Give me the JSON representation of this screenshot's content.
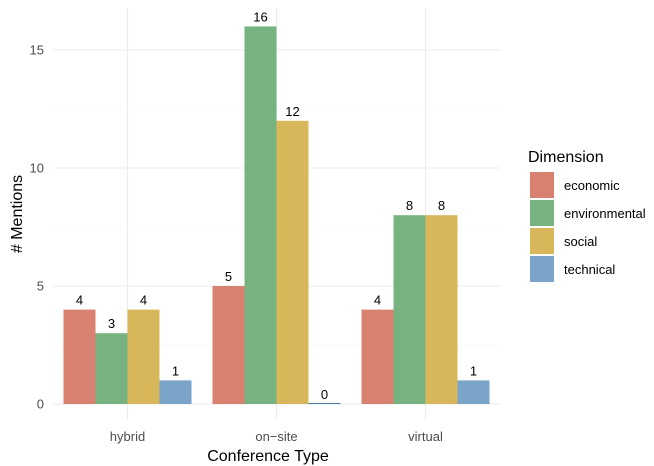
{
  "chart_data": {
    "type": "bar",
    "categories": [
      "hybrid",
      "on−site",
      "virtual"
    ],
    "series": [
      {
        "name": "economic",
        "values": [
          4,
          5,
          4
        ],
        "color": "#d98170"
      },
      {
        "name": "environmental",
        "values": [
          3,
          16,
          8
        ],
        "color": "#77b381"
      },
      {
        "name": "social",
        "values": [
          4,
          12,
          8
        ],
        "color": "#d8b75a"
      },
      {
        "name": "technical",
        "values": [
          1,
          0,
          1
        ],
        "color": "#7aa5c8"
      }
    ],
    "xlabel": "Conference Type",
    "ylabel": "# Mentions",
    "ylim": [
      0,
      16.8
    ],
    "yticks": [
      0,
      5,
      10,
      15
    ],
    "legend": {
      "title": "Dimension",
      "position": "right"
    },
    "grid": true
  }
}
